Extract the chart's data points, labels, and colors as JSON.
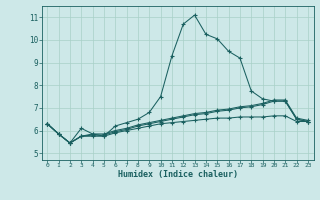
{
  "xlabel": "Humidex (Indice chaleur)",
  "background_color": "#cde8e8",
  "grid_color": "#a8d0c8",
  "line_color": "#1a6060",
  "xlim": [
    -0.5,
    23.5
  ],
  "ylim": [
    4.7,
    11.5
  ],
  "xticks": [
    0,
    1,
    2,
    3,
    4,
    5,
    6,
    7,
    8,
    9,
    10,
    11,
    12,
    13,
    14,
    15,
    16,
    17,
    18,
    19,
    20,
    21,
    22,
    23
  ],
  "yticks": [
    5,
    6,
    7,
    8,
    9,
    10,
    11
  ],
  "line1": [
    6.3,
    5.85,
    5.45,
    6.1,
    5.85,
    5.75,
    6.2,
    6.35,
    6.5,
    6.8,
    7.5,
    9.3,
    10.7,
    11.1,
    10.25,
    10.05,
    9.5,
    9.2,
    7.75,
    7.4,
    7.3,
    7.3,
    6.5,
    6.4
  ],
  "line2": [
    6.3,
    5.85,
    5.45,
    5.75,
    5.75,
    5.75,
    5.9,
    6.0,
    6.1,
    6.2,
    6.3,
    6.35,
    6.4,
    6.45,
    6.5,
    6.55,
    6.55,
    6.6,
    6.6,
    6.6,
    6.65,
    6.65,
    6.4,
    6.4
  ],
  "line3": [
    6.3,
    5.85,
    5.45,
    5.75,
    5.85,
    5.85,
    6.0,
    6.1,
    6.25,
    6.35,
    6.45,
    6.55,
    6.65,
    6.75,
    6.8,
    6.9,
    6.95,
    7.05,
    7.1,
    7.2,
    7.35,
    7.35,
    6.55,
    6.45
  ],
  "line4": [
    6.3,
    5.85,
    5.45,
    5.75,
    5.8,
    5.8,
    5.95,
    6.05,
    6.2,
    6.3,
    6.4,
    6.5,
    6.6,
    6.7,
    6.75,
    6.85,
    6.9,
    7.0,
    7.05,
    7.15,
    7.3,
    7.3,
    6.5,
    6.4
  ]
}
